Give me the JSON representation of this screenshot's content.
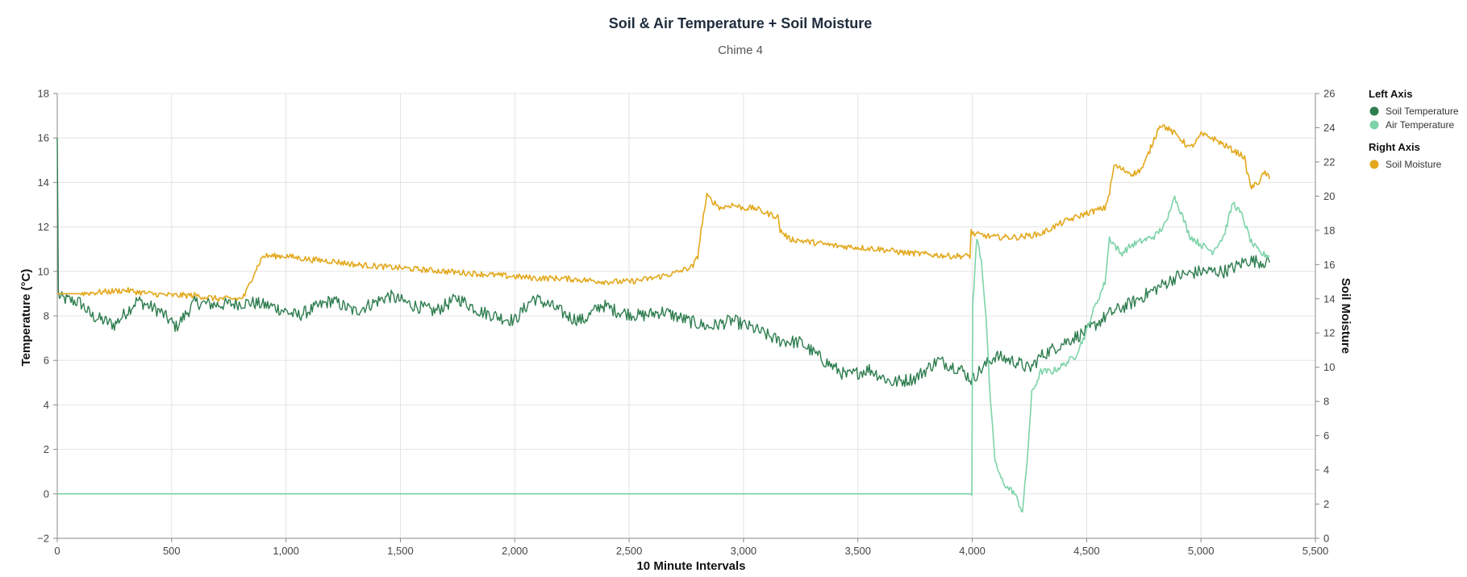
{
  "chart_data": {
    "type": "line",
    "title": "Soil & Air Temperature + Soil Moisture",
    "subtitle": "Chime 4",
    "xlabel": "10 Minute Intervals",
    "ylabel_left": "Temperature (°C)",
    "ylabel_right": "Soil Moisture",
    "xlim": [
      0,
      5500
    ],
    "ylim_left": [
      -2,
      18
    ],
    "ylim_right": [
      0,
      26
    ],
    "x_ticks": [
      0,
      500,
      1000,
      1500,
      2000,
      2500,
      3000,
      3500,
      4000,
      4500,
      5000,
      5500
    ],
    "x_tick_labels": [
      "0",
      "500",
      "1,000",
      "1,500",
      "2,000",
      "2,500",
      "3,000",
      "3,500",
      "4,000",
      "4,500",
      "5,000",
      "5,500"
    ],
    "y_left_ticks": [
      -2,
      0,
      2,
      4,
      6,
      8,
      10,
      12,
      14,
      16,
      18
    ],
    "y_left_tick_labels": [
      "−2",
      "0",
      "2",
      "4",
      "6",
      "8",
      "10",
      "12",
      "14",
      "16",
      "18"
    ],
    "y_right_ticks": [
      0,
      2,
      4,
      6,
      8,
      10,
      12,
      14,
      16,
      18,
      20,
      22,
      24,
      26
    ],
    "y_right_tick_labels": [
      "0",
      "2",
      "4",
      "6",
      "8",
      "10",
      "12",
      "14",
      "16",
      "18",
      "20",
      "22",
      "24",
      "26"
    ],
    "grid": true,
    "legend_position": "right",
    "legend": {
      "groups": [
        {
          "heading": "Left Axis",
          "items": [
            {
              "name": "Soil Temperature",
              "color": "#2e7d4f"
            },
            {
              "name": "Air Temperature",
              "color": "#7dd3a8"
            }
          ]
        },
        {
          "heading": "Right Axis",
          "items": [
            {
              "name": "Soil Moisture",
              "color": "#e3a81c"
            }
          ]
        }
      ]
    },
    "series": [
      {
        "name": "Soil Temperature",
        "axis": "left",
        "color": "#2e7d4f",
        "noise": 0.6,
        "x": [
          0,
          5,
          15,
          100,
          150,
          250,
          350,
          450,
          520,
          600,
          700,
          850,
          950,
          1050,
          1200,
          1300,
          1450,
          1550,
          1650,
          1750,
          1850,
          1950,
          2000,
          2080,
          2150,
          2250,
          2300,
          2380,
          2450,
          2550,
          2650,
          2750,
          2850,
          2950,
          3050,
          3150,
          3250,
          3350,
          3450,
          3550,
          3650,
          3750,
          3850,
          3950,
          4000,
          4020,
          4100,
          4200,
          4250,
          4300,
          4400,
          4500,
          4600,
          4700,
          4800,
          4900,
          5000,
          5100,
          5150,
          5200,
          5300
        ],
        "y": [
          16,
          9.0,
          8.8,
          8.6,
          8.0,
          7.6,
          8.7,
          8.2,
          7.5,
          8.6,
          8.5,
          8.6,
          8.4,
          8.0,
          8.7,
          8.2,
          8.9,
          8.5,
          8.2,
          8.8,
          8.2,
          7.9,
          7.8,
          8.8,
          8.5,
          7.9,
          7.8,
          8.5,
          8.2,
          8.0,
          8.2,
          7.8,
          7.5,
          7.8,
          7.4,
          6.9,
          6.8,
          6.0,
          5.3,
          5.6,
          5.0,
          5.2,
          6.0,
          5.6,
          5.1,
          5.4,
          6.2,
          5.9,
          5.6,
          6.2,
          6.8,
          7.3,
          8.1,
          8.6,
          9.2,
          9.8,
          10.0,
          10.0,
          10.2,
          10.5,
          10.4
        ]
      },
      {
        "name": "Air Temperature",
        "axis": "left",
        "color": "#7dd3a8",
        "noise": 0.3,
        "x": [
          0,
          3990,
          3998,
          4002,
          4020,
          4040,
          4060,
          4080,
          4100,
          4120,
          4150,
          4180,
          4220,
          4240,
          4260,
          4280,
          4300,
          4350,
          4400,
          4450,
          4500,
          4520,
          4580,
          4600,
          4650,
          4700,
          4800,
          4850,
          4880,
          4900,
          4950,
          5000,
          5050,
          5100,
          5140,
          5180,
          5220,
          5260,
          5300
        ],
        "y": [
          0,
          0,
          0,
          8.5,
          11.5,
          10.5,
          8.0,
          4.0,
          1.5,
          0.8,
          0.3,
          0.1,
          -0.8,
          1.5,
          4.5,
          5.0,
          5.5,
          5.5,
          5.8,
          6.2,
          7.3,
          8.0,
          9.5,
          11.5,
          10.8,
          11.2,
          11.6,
          12.2,
          13.4,
          13.0,
          11.6,
          11.2,
          10.9,
          11.6,
          13.1,
          12.5,
          11.3,
          10.8,
          10.7
        ]
      },
      {
        "name": "Soil Moisture",
        "axis": "right",
        "color": "#e3a81c",
        "noise": 0.35,
        "x": [
          0,
          100,
          200,
          300,
          400,
          500,
          600,
          700,
          800,
          820,
          860,
          900,
          1000,
          1100,
          1200,
          1300,
          1400,
          1500,
          1600,
          1700,
          1800,
          1900,
          2000,
          2100,
          2200,
          2300,
          2400,
          2500,
          2600,
          2700,
          2780,
          2800,
          2820,
          2840,
          2900,
          2950,
          3000,
          3050,
          3100,
          3150,
          3160,
          3200,
          3300,
          3400,
          3500,
          3600,
          3700,
          3800,
          3900,
          3990,
          3995,
          4000,
          4050,
          4100,
          4150,
          4200,
          4250,
          4300,
          4400,
          4500,
          4550,
          4580,
          4600,
          4620,
          4650,
          4700,
          4720,
          4740,
          4750,
          4800,
          4820,
          4850,
          4900,
          4950,
          4980,
          5000,
          5050,
          5100,
          5150,
          5180,
          5190,
          5200,
          5220,
          5250,
          5280,
          5300
        ],
        "y": [
          14.3,
          14.3,
          14.4,
          14.5,
          14.3,
          14.2,
          14.2,
          14.0,
          14.0,
          14.2,
          15.5,
          16.5,
          16.5,
          16.3,
          16.2,
          16.0,
          15.9,
          15.8,
          15.7,
          15.6,
          15.5,
          15.4,
          15.3,
          15.2,
          15.2,
          15.1,
          15.0,
          15.0,
          15.2,
          15.5,
          15.9,
          16.5,
          18.5,
          20.0,
          19.3,
          19.5,
          19.3,
          19.3,
          19.0,
          18.8,
          18.0,
          17.5,
          17.3,
          17.1,
          17.0,
          16.9,
          16.7,
          16.6,
          16.5,
          16.5,
          18.0,
          17.8,
          17.7,
          17.6,
          17.6,
          17.6,
          17.7,
          17.8,
          18.5,
          19.0,
          19.2,
          19.3,
          20.2,
          21.8,
          21.6,
          21.3,
          21.4,
          21.6,
          21.8,
          23.5,
          24.2,
          24.0,
          23.5,
          22.8,
          23.2,
          23.6,
          23.4,
          23.0,
          22.6,
          22.4,
          22.2,
          21.5,
          20.5,
          20.8,
          21.4,
          21.0
        ]
      }
    ]
  }
}
